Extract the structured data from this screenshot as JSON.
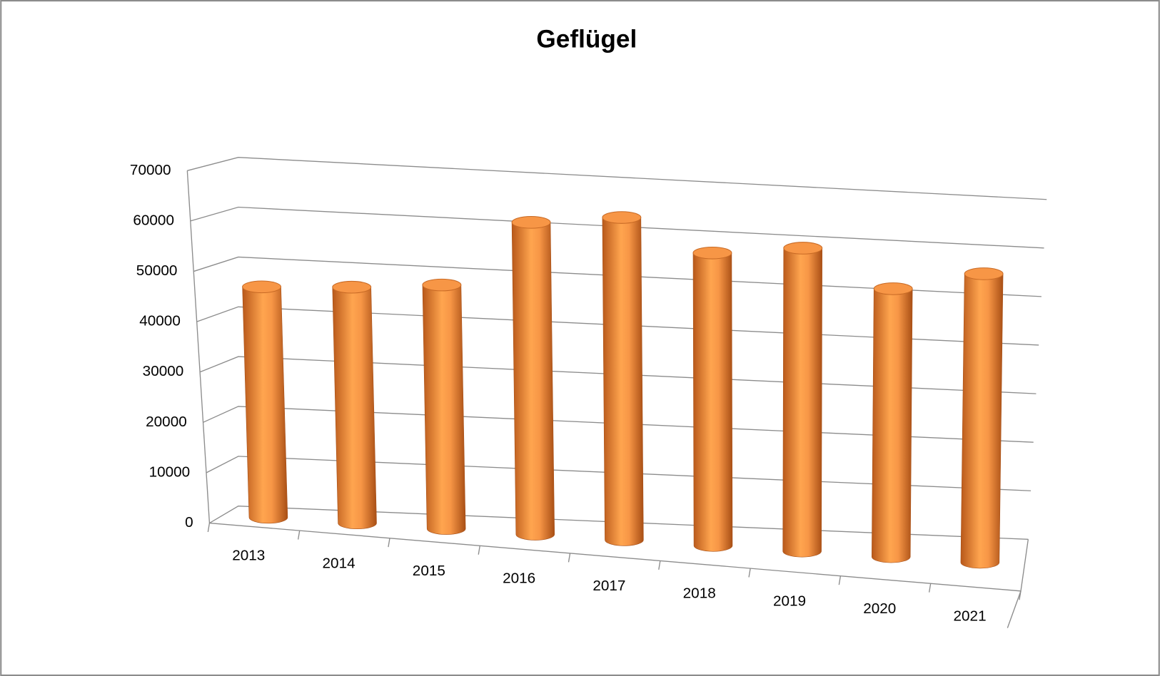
{
  "chart_data": {
    "type": "bar",
    "title": "Geflügel",
    "categories": [
      "2013",
      "2014",
      "2015",
      "2016",
      "2017",
      "2018",
      "2019",
      "2020",
      "2021"
    ],
    "values": [
      46000,
      47000,
      48500,
      62000,
      64000,
      58000,
      60000,
      53000,
      57000
    ],
    "color": "#f79646",
    "ylim": [
      0,
      70000
    ],
    "yticks": [
      0,
      10000,
      20000,
      30000,
      40000,
      50000,
      60000,
      70000
    ],
    "grid": true
  }
}
